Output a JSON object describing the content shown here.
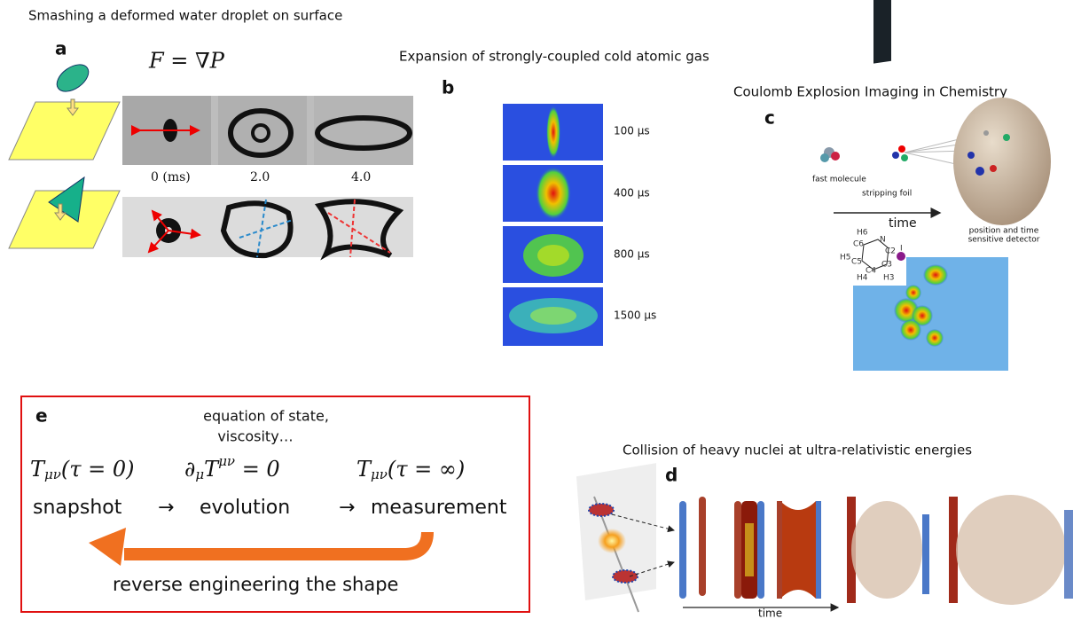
{
  "panel_a": {
    "title": "Smashing a deformed water droplet on surface",
    "label": "a",
    "equation": "F = ∇P",
    "times": [
      "0 (ms)",
      "2.0",
      "4.0"
    ]
  },
  "panel_b": {
    "title": "Expansion of strongly-coupled cold atomic gas",
    "label": "b",
    "times": [
      "100 µs",
      "400 µs",
      "800 µs",
      "1500 µs"
    ]
  },
  "panel_c": {
    "title": "Coulomb Explosion Imaging in Chemistry",
    "label": "c",
    "fast_molecule": "fast molecule",
    "stripping_foil": "stripping foil",
    "time": "time",
    "detector": [
      "position and time",
      "sensitive detector"
    ],
    "atoms": [
      "H6",
      "C6",
      "N",
      "C2",
      "I",
      "H5",
      "C5",
      "C3",
      "C4",
      "H4",
      "H3"
    ]
  },
  "panel_e": {
    "label": "e",
    "parameters": [
      "equation of state,",
      "viscosity…"
    ],
    "initial": [
      "T",
      "μν",
      "(τ = 0)"
    ],
    "evolution_eq": [
      "∂",
      "μ",
      "T",
      "μν",
      " = 0"
    ],
    "final": [
      "T",
      "μν",
      "(τ = ∞)"
    ],
    "steps": [
      "snapshot",
      "→",
      "evolution",
      "→",
      "measurement"
    ],
    "caption": "reverse engineering the shape"
  },
  "panel_d": {
    "title": "Collision of heavy nuclei at ultra-relativistic energies",
    "label": "d",
    "time": "time"
  }
}
